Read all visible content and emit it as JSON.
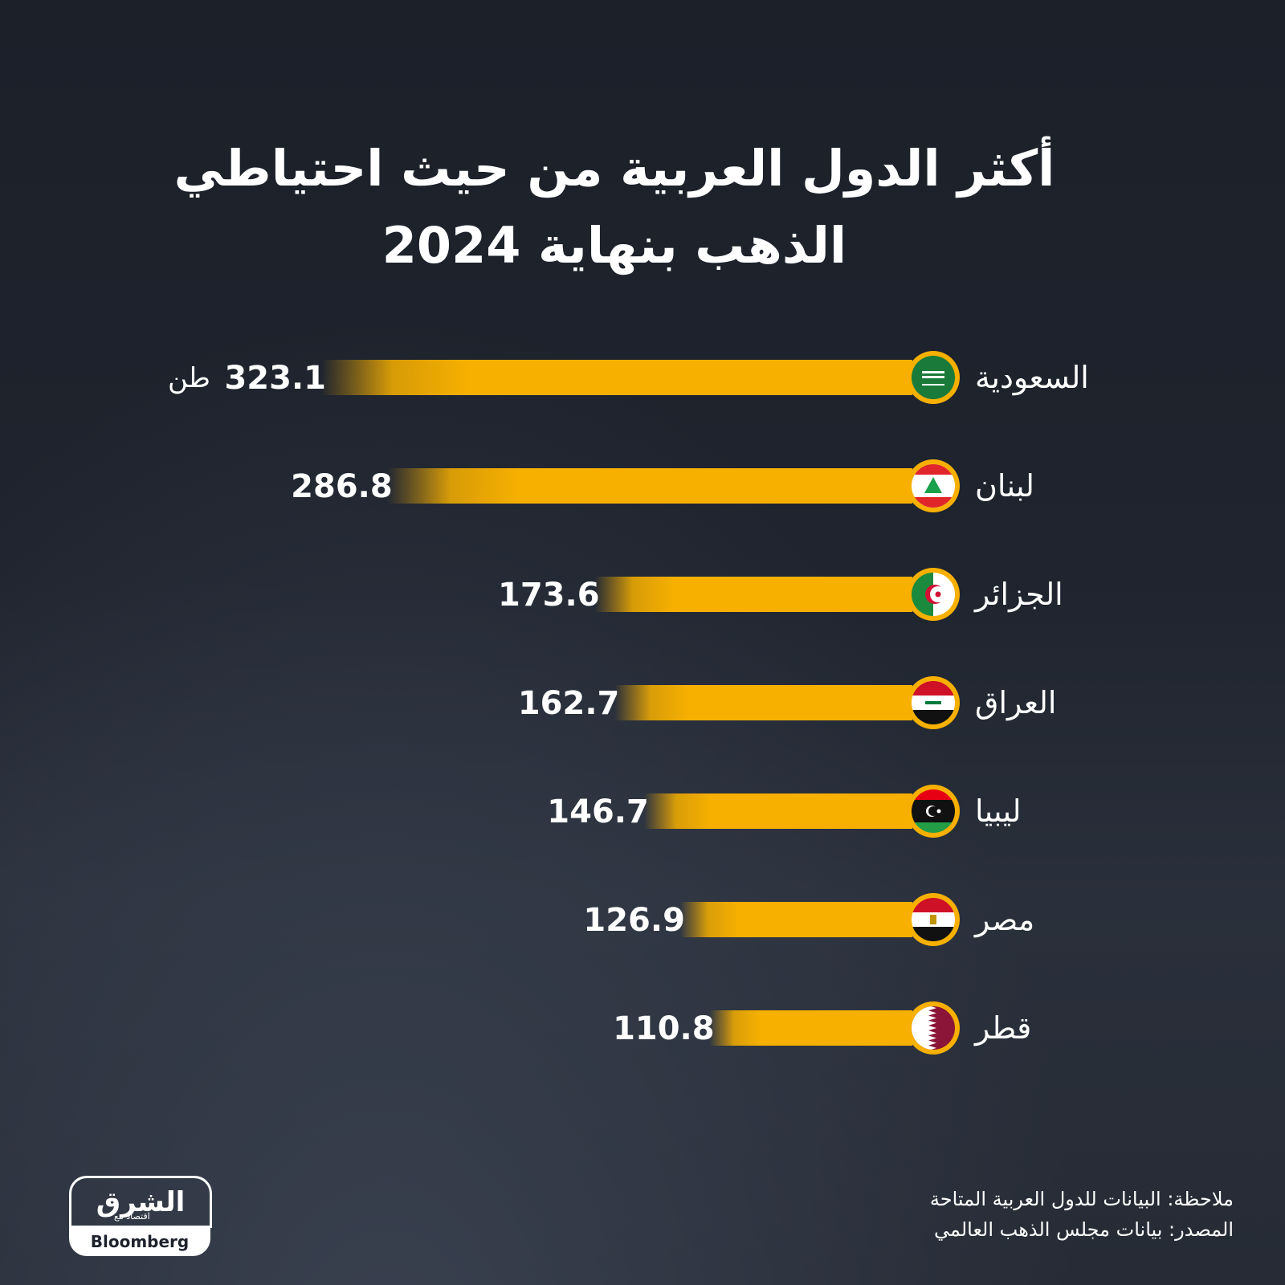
{
  "header": {
    "title_line1": "أكثر الدول العربية من حيث احتياطي",
    "title_line2": "الذهب بنهاية 2024"
  },
  "notes": {
    "note": "ملاحظة: البيانات للدول العربية المتاحة",
    "source": "المصدر: بيانات مجلس الذهب العالمي"
  },
  "logo": {
    "arabic": "الشرق",
    "sub": "اقتصاد",
    "with": "مع",
    "english": "Bloomberg"
  },
  "colors": {
    "bar": "#f7b000",
    "background": "#1d222c",
    "text": "#ffffff"
  },
  "chart_data": {
    "type": "bar",
    "orientation": "horizontal",
    "categories": [
      "السعودية",
      "لبنان",
      "الجزائر",
      "العراق",
      "ليبيا",
      "مصر",
      "قطر"
    ],
    "values": [
      323.1,
      286.8,
      173.6,
      162.7,
      146.7,
      126.9,
      110.8
    ],
    "value_labels": [
      "323.1",
      "286.8",
      "173.6",
      "162.7",
      "146.7",
      "126.9",
      "110.8"
    ],
    "unit": "طن",
    "flags": [
      "saudi-flag-icon",
      "lebanon-flag-icon",
      "algeria-flag-icon",
      "iraq-flag-icon",
      "libya-flag-icon",
      "egypt-flag-icon",
      "qatar-flag-icon"
    ],
    "title": "أكثر الدول العربية من حيث احتياطي الذهب بنهاية 2024",
    "xlabel": "",
    "ylabel": "",
    "grid": false,
    "legend": "none"
  }
}
